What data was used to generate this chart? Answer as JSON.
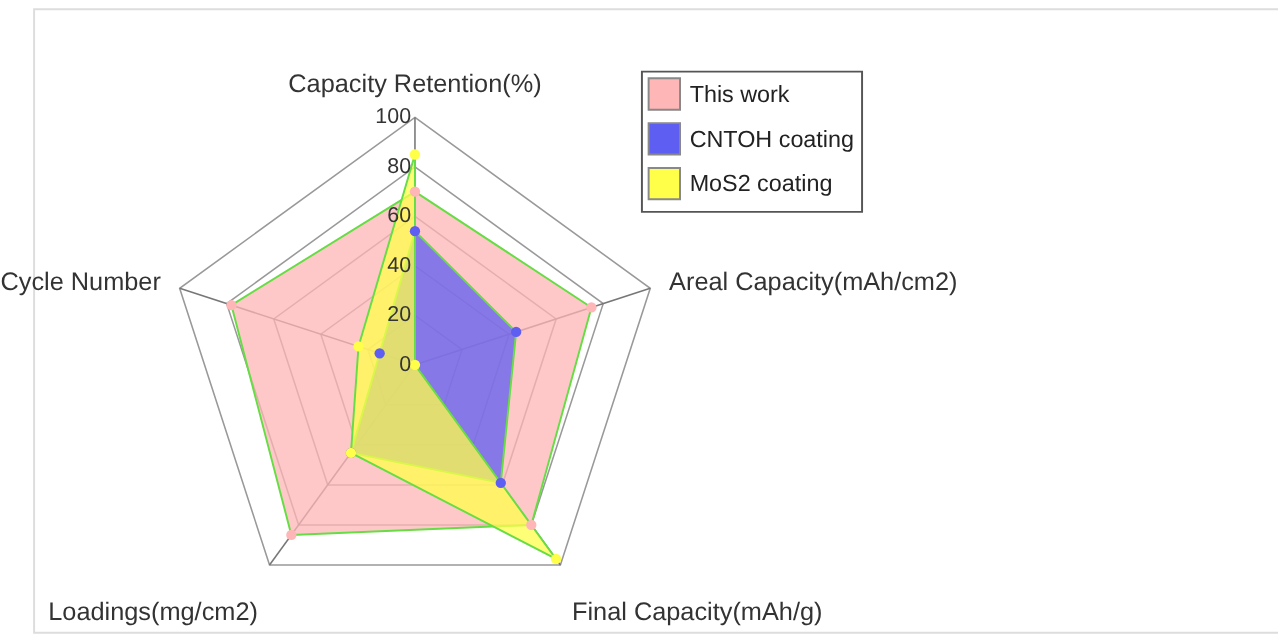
{
  "chart_data": {
    "type": "radar",
    "categories": [
      "Capacity Retention(%)",
      "Areal Capacity(mAh/cm2)",
      "Final Capacity(mAh/g)",
      "Loadings(mg/cm2)",
      "Cycle Number"
    ],
    "ylim": [
      0,
      100
    ],
    "yticks": [
      0,
      20,
      40,
      60,
      80,
      100
    ],
    "grid": true,
    "legend": "top right",
    "marker": "circle",
    "series": [
      {
        "name": "This work",
        "color": "#ffb6b6",
        "values": [
          70,
          75,
          80,
          85,
          78
        ]
      },
      {
        "name": "CNTOH coating",
        "color": "#5e5ef2",
        "values": [
          54,
          43,
          59,
          44,
          15
        ]
      },
      {
        "name": "MoS2 coating",
        "color": "#ffff4a",
        "values": [
          85,
          0,
          97,
          44,
          24
        ]
      }
    ]
  }
}
